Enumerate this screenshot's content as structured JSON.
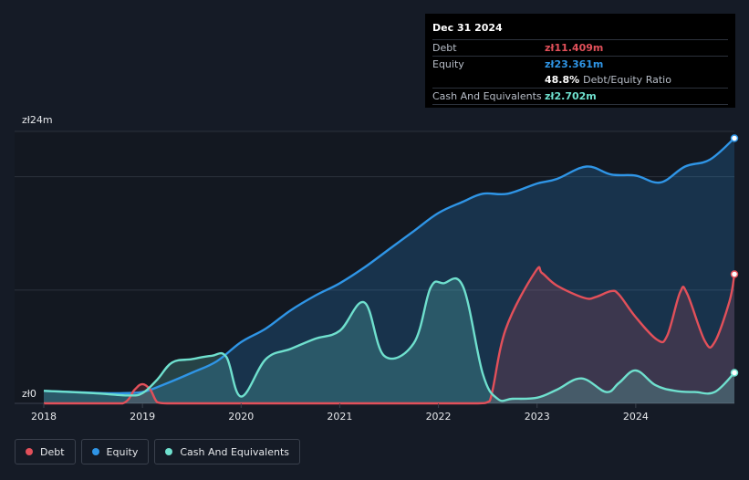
{
  "colors": {
    "debt": "#e2505a",
    "equity": "#2f95e6",
    "cash": "#6fe0ce",
    "grid": "#2b313c",
    "background": "#151b26"
  },
  "tooltip": {
    "date": "Dec 31 2024",
    "rows": [
      {
        "label": "Debt",
        "value": "zł11.409m",
        "extra": "",
        "color": "#e2505a"
      },
      {
        "label": "Equity",
        "value": "zł23.361m",
        "extra": "",
        "color": "#2f95e6"
      },
      {
        "label": "",
        "value": "48.8%",
        "extra": "Debt/Equity Ratio",
        "color": "#ffffff"
      },
      {
        "label": "Cash And Equivalents",
        "value": "zł2.702m",
        "extra": "",
        "color": "#6fe0ce"
      }
    ]
  },
  "legend": [
    {
      "label": "Debt",
      "icon": "debt-legend-dot",
      "color": "#e2505a"
    },
    {
      "label": "Equity",
      "icon": "equity-legend-dot",
      "color": "#2f95e6"
    },
    {
      "label": "Cash And Equivalents",
      "icon": "cash-legend-dot",
      "color": "#6fe0ce"
    }
  ],
  "chart_data": {
    "type": "area",
    "title": "",
    "xlabel": "",
    "ylabel": "",
    "y_tick_labels": [
      "zł24m",
      "zł0"
    ],
    "ylim": [
      0,
      24
    ],
    "xlim": [
      2018.0,
      2025.0
    ],
    "x_tick_labels": [
      "2018",
      "2019",
      "2020",
      "2021",
      "2022",
      "2023",
      "2024"
    ],
    "x_tick_values": [
      2018,
      2019,
      2020,
      2021,
      2022,
      2023,
      2024
    ],
    "grid": true,
    "legend_position": "bottom-left",
    "series": [
      {
        "name": "Debt",
        "key": "debt",
        "x": [
          2018.0,
          2018.5,
          2018.8,
          2018.92,
          2019.0,
          2019.08,
          2019.15,
          2019.25,
          2019.5,
          2020.0,
          2020.5,
          2021.0,
          2021.5,
          2022.0,
          2022.4,
          2022.52,
          2022.68,
          2022.98,
          2023.05,
          2023.2,
          2023.48,
          2023.6,
          2023.75,
          2023.83,
          2024.0,
          2024.22,
          2024.32,
          2024.45,
          2024.52,
          2024.7,
          2024.8,
          2024.95,
          2025.0
        ],
        "y": [
          0,
          0,
          0,
          1.2,
          1.7,
          1.2,
          0.1,
          0,
          0,
          0,
          0,
          0,
          0,
          0,
          0,
          0.2,
          6.5,
          11.6,
          11.5,
          10.4,
          9.3,
          9.4,
          9.9,
          9.6,
          7.6,
          5.6,
          6.0,
          9.8,
          9.7,
          5.5,
          5.4,
          9.0,
          11.4
        ]
      },
      {
        "name": "Equity",
        "key": "equity",
        "x": [
          2018.0,
          2018.3,
          2018.6,
          2018.8,
          2019.0,
          2019.2,
          2019.5,
          2019.75,
          2020.0,
          2020.25,
          2020.5,
          2020.75,
          2021.0,
          2021.25,
          2021.5,
          2021.75,
          2022.0,
          2022.25,
          2022.45,
          2022.7,
          2023.0,
          2023.2,
          2023.5,
          2023.75,
          2024.0,
          2024.25,
          2024.5,
          2024.75,
          2025.0
        ],
        "y": [
          1.1,
          1.0,
          0.9,
          0.9,
          1.0,
          1.6,
          2.7,
          3.7,
          5.4,
          6.6,
          8.2,
          9.5,
          10.6,
          12.0,
          13.6,
          15.2,
          16.8,
          17.8,
          18.5,
          18.5,
          19.4,
          19.8,
          20.9,
          20.2,
          20.1,
          19.5,
          20.9,
          21.5,
          23.4
        ]
      },
      {
        "name": "Cash And Equivalents",
        "key": "cash",
        "x": [
          2018.0,
          2018.5,
          2018.85,
          2019.0,
          2019.15,
          2019.3,
          2019.5,
          2019.7,
          2019.85,
          2020.0,
          2020.25,
          2020.5,
          2020.75,
          2021.0,
          2021.25,
          2021.45,
          2021.75,
          2021.92,
          2022.05,
          2022.25,
          2022.45,
          2022.6,
          2022.75,
          2023.0,
          2023.2,
          2023.45,
          2023.7,
          2023.83,
          2024.0,
          2024.2,
          2024.4,
          2024.6,
          2024.8,
          2025.0
        ],
        "y": [
          1.1,
          0.9,
          0.7,
          0.9,
          2.1,
          3.6,
          3.9,
          4.2,
          4.1,
          0.6,
          3.9,
          4.8,
          5.7,
          6.4,
          8.9,
          4.2,
          5.3,
          10.2,
          10.6,
          10.3,
          2.6,
          0.4,
          0.4,
          0.5,
          1.2,
          2.2,
          1.0,
          1.8,
          2.9,
          1.6,
          1.1,
          1.0,
          1.0,
          2.7
        ]
      }
    ]
  }
}
